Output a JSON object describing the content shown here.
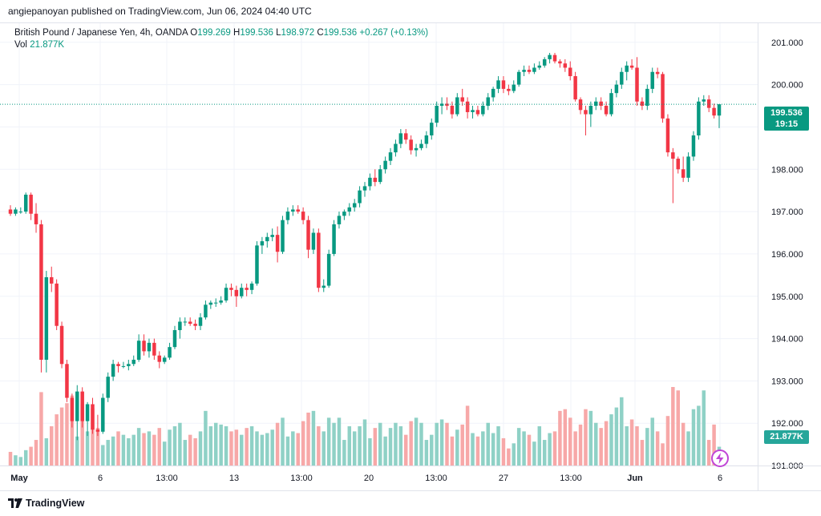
{
  "header": {
    "published_text": "angiepanoyan published on TradingView.com, Jun 06, 2024 04:40 UTC"
  },
  "legend": {
    "symbol": "British Pound / Japanese Yen, 4h, OANDA",
    "open_label": "O",
    "open": "199.269",
    "high_label": "H",
    "high": "199.536",
    "low_label": "L",
    "low": "198.972",
    "close_label": "C",
    "close": "199.536",
    "change": "+0.267 (+0.13%)",
    "vol_label": "Vol",
    "vol": "21.877K"
  },
  "price_tag": {
    "price": "199.536",
    "countdown": "19:15"
  },
  "vol_tag": "21.877K",
  "footer": {
    "brand": "TradingView"
  },
  "colors": {
    "up": "#089981",
    "down": "#f23645",
    "vol_up": "#8fd1c6",
    "vol_down": "#f7a8a8",
    "grid": "#f0f3fa",
    "flash": "#c045d6"
  },
  "chart_data": {
    "type": "candlestick",
    "title": "British Pound / Japanese Yen, 4h, OANDA",
    "ylim": [
      190.85,
      201.45
    ],
    "y_ticks": [
      "201.000",
      "200.000",
      "199.000",
      "198.000",
      "197.000",
      "196.000",
      "195.000",
      "194.000",
      "193.000",
      "192.000",
      "191.000"
    ],
    "x_ticks": [
      "May",
      "6",
      "13:00",
      "13",
      "13:00",
      "20",
      "13:00",
      "27",
      "13:00",
      "Jun",
      "6"
    ],
    "last_price": 199.536,
    "candles": [
      {
        "o": 197.05,
        "h": 197.15,
        "l": 196.9,
        "c": 196.95,
        "v": 16
      },
      {
        "o": 196.95,
        "h": 197.1,
        "l": 196.9,
        "c": 197.05,
        "v": 12
      },
      {
        "o": 197.0,
        "h": 197.1,
        "l": 196.95,
        "c": 197.0,
        "v": 10
      },
      {
        "o": 197.0,
        "h": 197.45,
        "l": 196.95,
        "c": 197.4,
        "v": 18
      },
      {
        "o": 197.4,
        "h": 197.45,
        "l": 196.8,
        "c": 196.95,
        "v": 22
      },
      {
        "o": 196.95,
        "h": 197.2,
        "l": 196.5,
        "c": 196.7,
        "v": 30
      },
      {
        "o": 196.7,
        "h": 196.8,
        "l": 193.2,
        "c": 193.5,
        "v": 86
      },
      {
        "o": 193.5,
        "h": 195.6,
        "l": 193.2,
        "c": 195.45,
        "v": 32
      },
      {
        "o": 195.45,
        "h": 195.7,
        "l": 195.1,
        "c": 195.3,
        "v": 46
      },
      {
        "o": 195.3,
        "h": 195.4,
        "l": 194.2,
        "c": 194.3,
        "v": 60
      },
      {
        "o": 194.3,
        "h": 194.4,
        "l": 193.3,
        "c": 193.4,
        "v": 68
      },
      {
        "o": 193.4,
        "h": 193.5,
        "l": 192.5,
        "c": 192.6,
        "v": 73
      },
      {
        "o": 192.6,
        "h": 192.7,
        "l": 191.9,
        "c": 192.05,
        "v": 82
      },
      {
        "o": 192.05,
        "h": 192.9,
        "l": 191.6,
        "c": 192.75,
        "v": 34
      },
      {
        "o": 192.75,
        "h": 192.85,
        "l": 191.9,
        "c": 192.05,
        "v": 72
      },
      {
        "o": 192.05,
        "h": 192.5,
        "l": 191.7,
        "c": 192.45,
        "v": 40
      },
      {
        "o": 192.45,
        "h": 192.6,
        "l": 191.75,
        "c": 191.85,
        "v": 67
      },
      {
        "o": 191.85,
        "h": 192.2,
        "l": 191.7,
        "c": 191.8,
        "v": 44
      },
      {
        "o": 191.8,
        "h": 192.7,
        "l": 191.75,
        "c": 192.6,
        "v": 24
      },
      {
        "o": 192.6,
        "h": 193.2,
        "l": 192.5,
        "c": 193.1,
        "v": 30
      },
      {
        "o": 193.1,
        "h": 193.5,
        "l": 193.0,
        "c": 193.4,
        "v": 34
      },
      {
        "o": 193.4,
        "h": 193.45,
        "l": 193.2,
        "c": 193.35,
        "v": 40
      },
      {
        "o": 193.35,
        "h": 193.45,
        "l": 193.3,
        "c": 193.35,
        "v": 36
      },
      {
        "o": 193.35,
        "h": 193.5,
        "l": 193.25,
        "c": 193.4,
        "v": 32
      },
      {
        "o": 193.4,
        "h": 193.6,
        "l": 193.35,
        "c": 193.5,
        "v": 36
      },
      {
        "o": 193.5,
        "h": 194.1,
        "l": 193.45,
        "c": 193.95,
        "v": 44
      },
      {
        "o": 193.95,
        "h": 194.1,
        "l": 193.6,
        "c": 193.7,
        "v": 38
      },
      {
        "o": 193.7,
        "h": 194.0,
        "l": 193.55,
        "c": 193.9,
        "v": 40
      },
      {
        "o": 193.9,
        "h": 194.0,
        "l": 193.5,
        "c": 193.6,
        "v": 36
      },
      {
        "o": 193.6,
        "h": 193.7,
        "l": 193.3,
        "c": 193.45,
        "v": 44
      },
      {
        "o": 193.45,
        "h": 193.6,
        "l": 193.4,
        "c": 193.55,
        "v": 28
      },
      {
        "o": 193.55,
        "h": 193.9,
        "l": 193.5,
        "c": 193.8,
        "v": 42
      },
      {
        "o": 193.8,
        "h": 194.3,
        "l": 193.75,
        "c": 194.2,
        "v": 46
      },
      {
        "o": 194.2,
        "h": 194.5,
        "l": 194.0,
        "c": 194.4,
        "v": 50
      },
      {
        "o": 194.4,
        "h": 194.5,
        "l": 194.3,
        "c": 194.4,
        "v": 30
      },
      {
        "o": 194.4,
        "h": 194.5,
        "l": 194.3,
        "c": 194.35,
        "v": 36
      },
      {
        "o": 194.35,
        "h": 194.45,
        "l": 194.2,
        "c": 194.3,
        "v": 32
      },
      {
        "o": 194.3,
        "h": 194.6,
        "l": 194.2,
        "c": 194.5,
        "v": 40
      },
      {
        "o": 194.5,
        "h": 194.9,
        "l": 194.45,
        "c": 194.8,
        "v": 64
      },
      {
        "o": 194.8,
        "h": 194.9,
        "l": 194.7,
        "c": 194.85,
        "v": 46
      },
      {
        "o": 194.85,
        "h": 194.95,
        "l": 194.75,
        "c": 194.85,
        "v": 50
      },
      {
        "o": 194.85,
        "h": 195.0,
        "l": 194.8,
        "c": 194.9,
        "v": 48
      },
      {
        "o": 194.9,
        "h": 195.3,
        "l": 194.85,
        "c": 195.2,
        "v": 46
      },
      {
        "o": 195.2,
        "h": 195.3,
        "l": 195.0,
        "c": 195.15,
        "v": 40
      },
      {
        "o": 195.15,
        "h": 195.25,
        "l": 194.75,
        "c": 195.0,
        "v": 42
      },
      {
        "o": 195.0,
        "h": 195.3,
        "l": 194.95,
        "c": 195.2,
        "v": 36
      },
      {
        "o": 195.2,
        "h": 195.3,
        "l": 195.0,
        "c": 195.15,
        "v": 44
      },
      {
        "o": 195.15,
        "h": 195.35,
        "l": 195.05,
        "c": 195.3,
        "v": 46
      },
      {
        "o": 195.3,
        "h": 196.3,
        "l": 195.25,
        "c": 196.2,
        "v": 40
      },
      {
        "o": 196.2,
        "h": 196.4,
        "l": 196.0,
        "c": 196.3,
        "v": 36
      },
      {
        "o": 196.3,
        "h": 196.5,
        "l": 196.15,
        "c": 196.4,
        "v": 38
      },
      {
        "o": 196.4,
        "h": 196.6,
        "l": 196.3,
        "c": 196.45,
        "v": 42
      },
      {
        "o": 196.45,
        "h": 196.65,
        "l": 195.8,
        "c": 196.05,
        "v": 50
      },
      {
        "o": 196.05,
        "h": 196.9,
        "l": 196.0,
        "c": 196.8,
        "v": 56
      },
      {
        "o": 196.8,
        "h": 197.1,
        "l": 196.7,
        "c": 197.0,
        "v": 34
      },
      {
        "o": 197.0,
        "h": 197.15,
        "l": 196.9,
        "c": 197.05,
        "v": 40
      },
      {
        "o": 197.05,
        "h": 197.15,
        "l": 196.95,
        "c": 197.0,
        "v": 38
      },
      {
        "o": 197.0,
        "h": 197.1,
        "l": 196.7,
        "c": 196.8,
        "v": 52
      },
      {
        "o": 196.8,
        "h": 196.9,
        "l": 195.9,
        "c": 196.1,
        "v": 62
      },
      {
        "o": 196.1,
        "h": 196.6,
        "l": 196.0,
        "c": 196.5,
        "v": 64
      },
      {
        "o": 196.5,
        "h": 196.6,
        "l": 195.1,
        "c": 195.2,
        "v": 46
      },
      {
        "o": 195.2,
        "h": 195.4,
        "l": 195.1,
        "c": 195.25,
        "v": 40
      },
      {
        "o": 195.25,
        "h": 196.1,
        "l": 195.2,
        "c": 196.0,
        "v": 56
      },
      {
        "o": 196.0,
        "h": 196.8,
        "l": 195.95,
        "c": 196.7,
        "v": 50
      },
      {
        "o": 196.7,
        "h": 197.0,
        "l": 196.6,
        "c": 196.9,
        "v": 56
      },
      {
        "o": 196.9,
        "h": 197.05,
        "l": 196.8,
        "c": 197.0,
        "v": 30
      },
      {
        "o": 197.0,
        "h": 197.2,
        "l": 196.9,
        "c": 197.1,
        "v": 46
      },
      {
        "o": 197.1,
        "h": 197.3,
        "l": 197.0,
        "c": 197.2,
        "v": 40
      },
      {
        "o": 197.2,
        "h": 197.6,
        "l": 197.1,
        "c": 197.5,
        "v": 46
      },
      {
        "o": 197.5,
        "h": 197.7,
        "l": 197.35,
        "c": 197.6,
        "v": 54
      },
      {
        "o": 197.6,
        "h": 197.9,
        "l": 197.5,
        "c": 197.8,
        "v": 32
      },
      {
        "o": 197.8,
        "h": 198.0,
        "l": 197.6,
        "c": 197.7,
        "v": 44
      },
      {
        "o": 197.7,
        "h": 198.1,
        "l": 197.65,
        "c": 198.0,
        "v": 50
      },
      {
        "o": 198.0,
        "h": 198.3,
        "l": 197.9,
        "c": 198.2,
        "v": 34
      },
      {
        "o": 198.2,
        "h": 198.5,
        "l": 198.1,
        "c": 198.4,
        "v": 44
      },
      {
        "o": 198.4,
        "h": 198.7,
        "l": 198.3,
        "c": 198.6,
        "v": 50
      },
      {
        "o": 198.6,
        "h": 198.95,
        "l": 198.5,
        "c": 198.85,
        "v": 46
      },
      {
        "o": 198.85,
        "h": 198.95,
        "l": 198.6,
        "c": 198.7,
        "v": 36
      },
      {
        "o": 198.7,
        "h": 198.8,
        "l": 198.35,
        "c": 198.45,
        "v": 52
      },
      {
        "o": 198.45,
        "h": 198.6,
        "l": 198.3,
        "c": 198.5,
        "v": 56
      },
      {
        "o": 198.5,
        "h": 198.7,
        "l": 198.45,
        "c": 198.6,
        "v": 50
      },
      {
        "o": 198.6,
        "h": 198.9,
        "l": 198.5,
        "c": 198.8,
        "v": 30
      },
      {
        "o": 198.8,
        "h": 199.2,
        "l": 198.7,
        "c": 199.1,
        "v": 36
      },
      {
        "o": 199.1,
        "h": 199.6,
        "l": 199.0,
        "c": 199.5,
        "v": 50
      },
      {
        "o": 199.5,
        "h": 199.7,
        "l": 199.3,
        "c": 199.55,
        "v": 54
      },
      {
        "o": 199.55,
        "h": 199.7,
        "l": 199.4,
        "c": 199.5,
        "v": 50
      },
      {
        "o": 199.5,
        "h": 199.6,
        "l": 199.2,
        "c": 199.3,
        "v": 34
      },
      {
        "o": 199.3,
        "h": 199.8,
        "l": 199.25,
        "c": 199.7,
        "v": 42
      },
      {
        "o": 199.7,
        "h": 199.9,
        "l": 199.5,
        "c": 199.6,
        "v": 48
      },
      {
        "o": 199.6,
        "h": 199.7,
        "l": 199.2,
        "c": 199.35,
        "v": 70
      },
      {
        "o": 199.35,
        "h": 199.5,
        "l": 199.2,
        "c": 199.4,
        "v": 38
      },
      {
        "o": 199.4,
        "h": 199.5,
        "l": 199.25,
        "c": 199.3,
        "v": 34
      },
      {
        "o": 199.3,
        "h": 199.6,
        "l": 199.25,
        "c": 199.5,
        "v": 40
      },
      {
        "o": 199.5,
        "h": 199.8,
        "l": 199.4,
        "c": 199.7,
        "v": 50
      },
      {
        "o": 199.7,
        "h": 199.95,
        "l": 199.6,
        "c": 199.9,
        "v": 38
      },
      {
        "o": 199.9,
        "h": 200.2,
        "l": 199.8,
        "c": 200.1,
        "v": 46
      },
      {
        "o": 200.1,
        "h": 200.2,
        "l": 199.8,
        "c": 199.9,
        "v": 32
      },
      {
        "o": 199.9,
        "h": 200.0,
        "l": 199.75,
        "c": 199.85,
        "v": 20
      },
      {
        "o": 199.85,
        "h": 200.1,
        "l": 199.8,
        "c": 200.0,
        "v": 26
      },
      {
        "o": 200.0,
        "h": 200.35,
        "l": 199.95,
        "c": 200.3,
        "v": 44
      },
      {
        "o": 200.3,
        "h": 200.45,
        "l": 200.2,
        "c": 200.35,
        "v": 40
      },
      {
        "o": 200.35,
        "h": 200.45,
        "l": 200.25,
        "c": 200.3,
        "v": 36
      },
      {
        "o": 200.3,
        "h": 200.5,
        "l": 200.25,
        "c": 200.4,
        "v": 28
      },
      {
        "o": 200.4,
        "h": 200.55,
        "l": 200.35,
        "c": 200.45,
        "v": 46
      },
      {
        "o": 200.45,
        "h": 200.65,
        "l": 200.4,
        "c": 200.6,
        "v": 30
      },
      {
        "o": 200.6,
        "h": 200.75,
        "l": 200.5,
        "c": 200.7,
        "v": 38
      },
      {
        "o": 200.7,
        "h": 200.75,
        "l": 200.5,
        "c": 200.55,
        "v": 40
      },
      {
        "o": 200.55,
        "h": 200.6,
        "l": 200.4,
        "c": 200.5,
        "v": 64
      },
      {
        "o": 200.5,
        "h": 200.6,
        "l": 200.3,
        "c": 200.4,
        "v": 66
      },
      {
        "o": 200.4,
        "h": 200.55,
        "l": 200.1,
        "c": 200.2,
        "v": 56
      },
      {
        "o": 200.2,
        "h": 200.3,
        "l": 199.6,
        "c": 199.65,
        "v": 40
      },
      {
        "o": 199.65,
        "h": 199.7,
        "l": 199.3,
        "c": 199.4,
        "v": 48
      },
      {
        "o": 199.4,
        "h": 199.5,
        "l": 198.8,
        "c": 199.3,
        "v": 66
      },
      {
        "o": 199.3,
        "h": 199.6,
        "l": 199.0,
        "c": 199.5,
        "v": 64
      },
      {
        "o": 199.5,
        "h": 199.7,
        "l": 199.4,
        "c": 199.6,
        "v": 50
      },
      {
        "o": 199.6,
        "h": 199.7,
        "l": 199.4,
        "c": 199.5,
        "v": 44
      },
      {
        "o": 199.5,
        "h": 199.6,
        "l": 199.25,
        "c": 199.3,
        "v": 52
      },
      {
        "o": 199.3,
        "h": 199.9,
        "l": 199.25,
        "c": 199.8,
        "v": 60
      },
      {
        "o": 199.8,
        "h": 200.1,
        "l": 199.7,
        "c": 200.0,
        "v": 68
      },
      {
        "o": 200.0,
        "h": 200.4,
        "l": 199.9,
        "c": 200.3,
        "v": 80
      },
      {
        "o": 200.3,
        "h": 200.55,
        "l": 200.1,
        "c": 200.45,
        "v": 46
      },
      {
        "o": 200.45,
        "h": 200.6,
        "l": 200.35,
        "c": 200.4,
        "v": 54
      },
      {
        "o": 200.4,
        "h": 200.65,
        "l": 199.5,
        "c": 199.6,
        "v": 46
      },
      {
        "o": 199.6,
        "h": 199.7,
        "l": 199.4,
        "c": 199.5,
        "v": 30
      },
      {
        "o": 199.5,
        "h": 200.0,
        "l": 199.4,
        "c": 199.9,
        "v": 44
      },
      {
        "o": 199.9,
        "h": 200.4,
        "l": 199.8,
        "c": 200.3,
        "v": 56
      },
      {
        "o": 200.3,
        "h": 200.4,
        "l": 200.15,
        "c": 200.25,
        "v": 40
      },
      {
        "o": 200.25,
        "h": 200.3,
        "l": 199.1,
        "c": 199.2,
        "v": 26
      },
      {
        "o": 199.2,
        "h": 199.3,
        "l": 198.3,
        "c": 198.4,
        "v": 58
      },
      {
        "o": 198.4,
        "h": 198.5,
        "l": 197.2,
        "c": 198.25,
        "v": 92
      },
      {
        "o": 198.25,
        "h": 198.3,
        "l": 197.9,
        "c": 198.0,
        "v": 88
      },
      {
        "o": 198.0,
        "h": 198.3,
        "l": 197.7,
        "c": 197.8,
        "v": 50
      },
      {
        "o": 197.8,
        "h": 198.4,
        "l": 197.7,
        "c": 198.3,
        "v": 40
      },
      {
        "o": 198.3,
        "h": 198.9,
        "l": 198.2,
        "c": 198.8,
        "v": 66
      },
      {
        "o": 198.8,
        "h": 199.7,
        "l": 198.7,
        "c": 199.6,
        "v": 70
      },
      {
        "o": 199.6,
        "h": 199.75,
        "l": 199.5,
        "c": 199.65,
        "v": 88
      },
      {
        "o": 199.65,
        "h": 199.75,
        "l": 199.35,
        "c": 199.45,
        "v": 30
      },
      {
        "o": 199.45,
        "h": 199.55,
        "l": 199.2,
        "c": 199.27,
        "v": 48
      },
      {
        "o": 199.269,
        "h": 199.536,
        "l": 198.972,
        "c": 199.536,
        "v": 22
      }
    ]
  }
}
